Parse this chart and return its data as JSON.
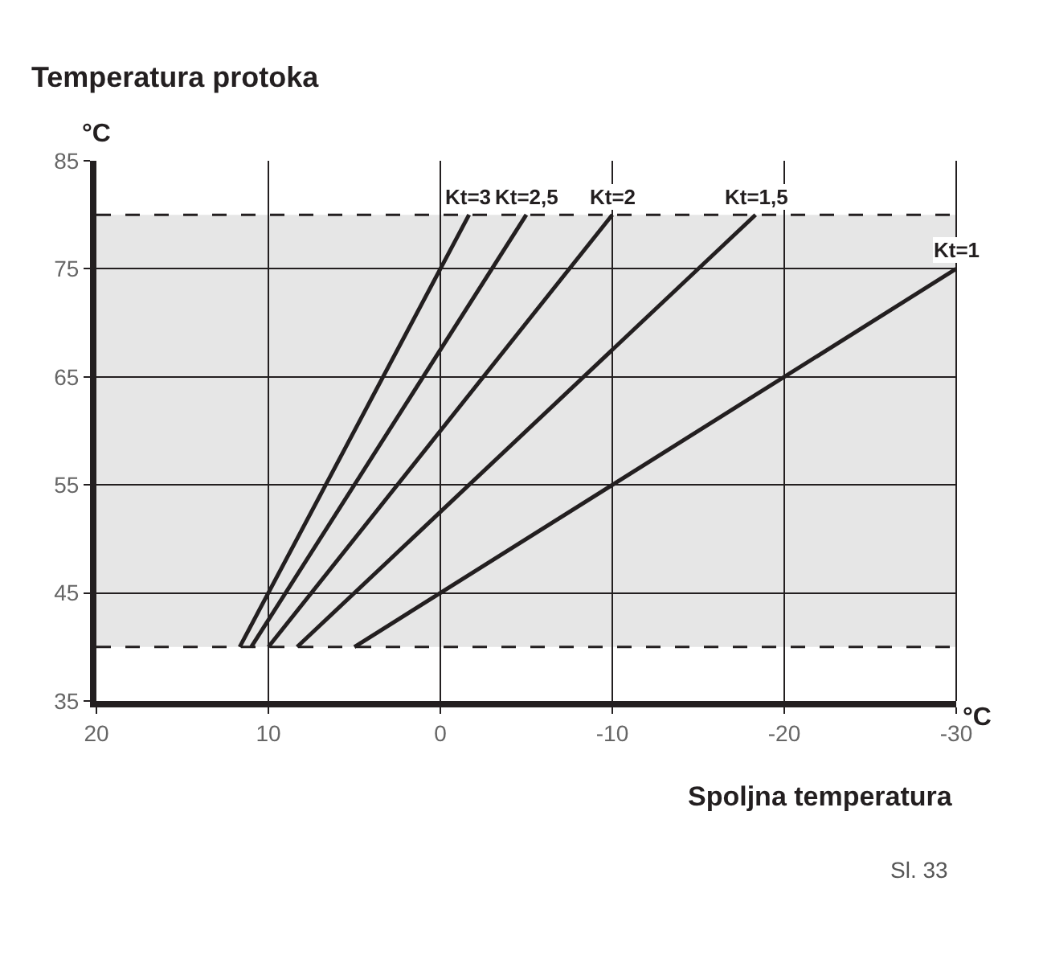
{
  "chart_data": {
    "type": "line",
    "title": "Temperatura protoka",
    "xlabel": "Spoljna temperatura",
    "ylabel": "°C",
    "annotations": [
      "°C",
      "Sl. 33"
    ],
    "xlim": [
      20,
      -30
    ],
    "xticks": [
      20,
      10,
      0,
      -10,
      -20,
      -30
    ],
    "ylim": [
      35,
      85
    ],
    "yticks": [
      35,
      45,
      55,
      65,
      75,
      85
    ],
    "grid": true,
    "legend": false,
    "marker": "none",
    "line_style": "solid",
    "series": [
      {
        "name": "Kt=3",
        "color": "#231f20",
        "x": [
          11.67,
          -1.67
        ],
        "values": [
          40,
          80
        ]
      },
      {
        "name": "Kt=2,5",
        "color": "#231f20",
        "x": [
          11,
          -5
        ],
        "values": [
          40,
          80
        ]
      },
      {
        "name": "Kt=2",
        "color": "#231f20",
        "x": [
          10,
          -10
        ],
        "values": [
          40,
          80
        ]
      },
      {
        "name": "Kt=1,5",
        "color": "#231f20",
        "x": [
          8.33,
          -18.33
        ],
        "values": [
          40,
          80
        ]
      },
      {
        "name": "Kt=1",
        "color": "#231f20",
        "x": [
          5,
          -30
        ],
        "values": [
          40,
          75
        ]
      }
    ],
    "bands": [
      {
        "axis": "y",
        "from": 40,
        "to": 80,
        "color": "#e6e6e6"
      }
    ],
    "ref_lines": [
      {
        "axis": "y",
        "value": 40,
        "color": "#231f20",
        "line_style": "dashed"
      },
      {
        "axis": "y",
        "value": 80,
        "color": "#231f20",
        "line_style": "dashed"
      }
    ]
  }
}
